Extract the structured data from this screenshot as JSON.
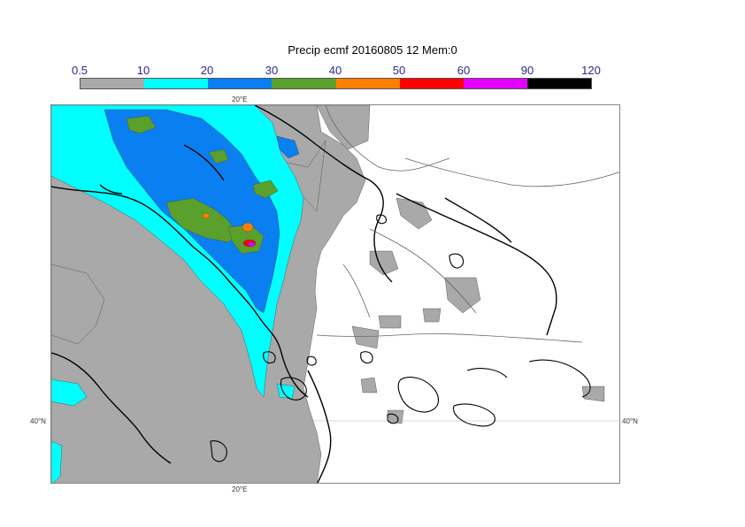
{
  "title": "Precip ecmf 20160805 12 Mem:0",
  "legend": {
    "thresholds": [
      "0.5",
      "10",
      "20",
      "30",
      "40",
      "50",
      "60",
      "90",
      "120"
    ],
    "colors": [
      "#a9a9a9",
      "#00ffff",
      "#0a7ff2",
      "#5aa02c",
      "#ff7f00",
      "#ff0000",
      "#e100ff",
      "#000000"
    ]
  },
  "map": {
    "lon_label_top": "20°E",
    "lon_label_bottom": "20°E",
    "lat_label_left": "40°N",
    "lat_label_right": "40°N"
  }
}
